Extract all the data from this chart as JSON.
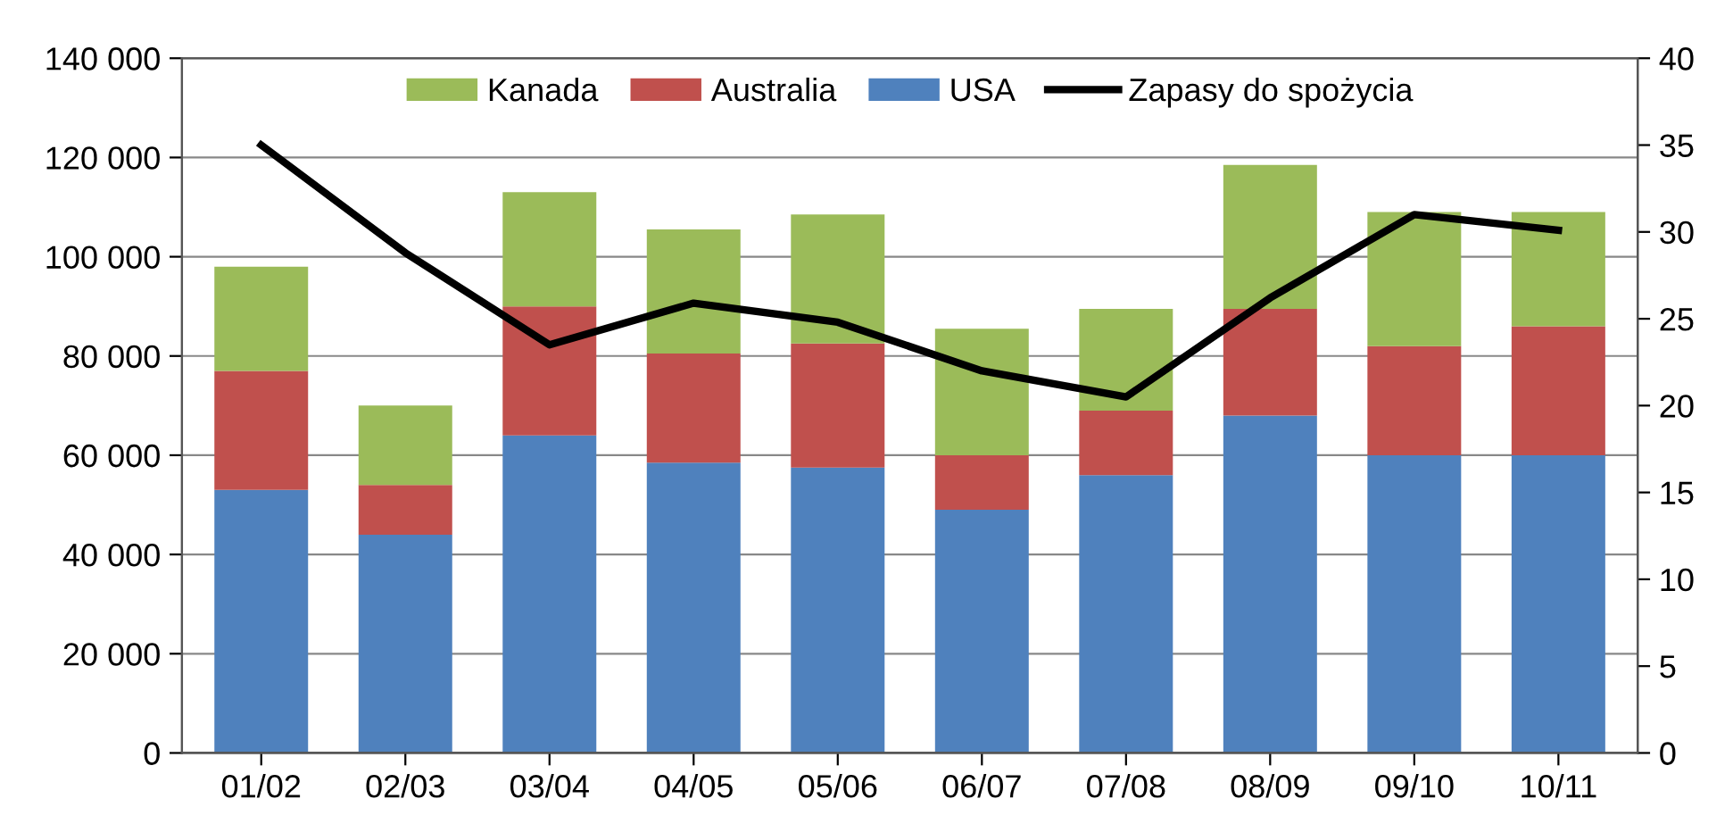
{
  "chart_data": {
    "type": "bar",
    "stacked": true,
    "categories": [
      "01/02",
      "02/03",
      "03/04",
      "04/05",
      "05/06",
      "06/07",
      "07/08",
      "08/09",
      "09/10",
      "10/11"
    ],
    "series": [
      {
        "name": "USA",
        "color": "#4f81bd",
        "values": [
          53000,
          44000,
          64000,
          58500,
          57500,
          49000,
          56000,
          68000,
          60000,
          60000
        ]
      },
      {
        "name": "Australia",
        "color": "#c0504d",
        "values": [
          24000,
          10000,
          26000,
          22000,
          25000,
          11000,
          13000,
          21500,
          22000,
          26000
        ]
      },
      {
        "name": "Kanada",
        "color": "#9bbb59",
        "values": [
          21000,
          16000,
          23000,
          25000,
          26000,
          25500,
          20500,
          29000,
          27000,
          23000
        ]
      },
      {
        "name": "Zapasy do spożycia",
        "color": "#000000",
        "type": "line",
        "axis": "y2",
        "values": [
          35,
          28.8,
          23.5,
          25.9,
          24.8,
          22,
          20.5,
          26.2,
          31,
          30.1
        ]
      }
    ],
    "ylim": [
      0,
      140000
    ],
    "yticks": [
      0,
      {
        "value": 20000,
        "label": "20 000"
      },
      {
        "value": 40000,
        "label": "40 000"
      },
      {
        "value": 60000,
        "label": "60 000"
      },
      {
        "value": 80000,
        "label": "80 000"
      },
      {
        "value": 100000,
        "label": "100 000"
      },
      {
        "value": 120000,
        "label": "120 000"
      },
      {
        "value": 140000,
        "label": "140 000"
      }
    ],
    "y2lim": [
      0,
      40
    ],
    "y2ticks": [
      0,
      5,
      10,
      15,
      20,
      25,
      30,
      35,
      40
    ],
    "grid": "y",
    "legend": "top",
    "marker": "none",
    "line_style": "solid"
  }
}
